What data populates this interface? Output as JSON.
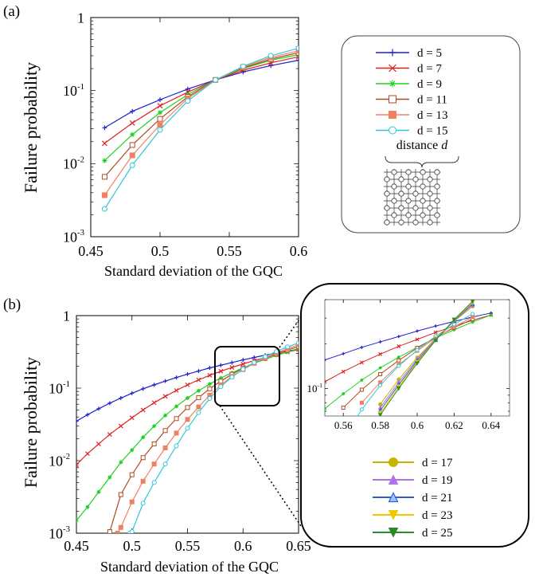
{
  "panel_labels": [
    "(a)",
    "(b)"
  ],
  "inset_legend_caption": "distance",
  "inset_legend_caption_var": "d",
  "chart_data": [
    {
      "type": "line",
      "panel": "(a)",
      "xlabel": "Standard deviation of the GQC",
      "ylabel": "Failure probability",
      "xlim": [
        0.45,
        0.6
      ],
      "ylim": [
        0.001,
        1
      ],
      "yscale": "log",
      "grid": false,
      "legend_position": "right",
      "xticks": [
        0.45,
        0.5,
        0.55,
        0.6
      ],
      "xticklabels": [
        "0.45",
        "0.5",
        "0.55",
        "0.6"
      ],
      "yticks": [
        0.001,
        0.01,
        0.1,
        1
      ],
      "yticklabels": [
        [
          "10",
          "-3"
        ],
        [
          "10",
          "-2"
        ],
        [
          "10",
          "-1"
        ],
        [
          "1",
          ""
        ]
      ],
      "x": [
        0.46,
        0.48,
        0.5,
        0.52,
        0.54,
        0.56,
        0.58,
        0.6
      ],
      "series": [
        {
          "name": "d = 5",
          "color": "#1f1fd0",
          "marker": "plus",
          "values": [
            0.031,
            0.052,
            0.075,
            0.105,
            0.14,
            0.18,
            0.22,
            0.26
          ]
        },
        {
          "name": "d = 7",
          "color": "#e02020",
          "marker": "x",
          "values": [
            0.019,
            0.036,
            0.062,
            0.095,
            0.14,
            0.19,
            0.24,
            0.29
          ]
        },
        {
          "name": "d = 9",
          "color": "#20d020",
          "marker": "star",
          "values": [
            0.011,
            0.025,
            0.05,
            0.088,
            0.14,
            0.2,
            0.26,
            0.31
          ]
        },
        {
          "name": "d = 11",
          "color": "#b04a20",
          "marker": "open-square",
          "values": [
            0.0066,
            0.018,
            0.041,
            0.082,
            0.14,
            0.205,
            0.27,
            0.33
          ]
        },
        {
          "name": "d = 13",
          "color": "#f08060",
          "marker": "filled-square",
          "values": [
            0.0037,
            0.013,
            0.034,
            0.078,
            0.14,
            0.21,
            0.285,
            0.35
          ]
        },
        {
          "name": "d = 15",
          "color": "#30c8d8",
          "marker": "open-circle",
          "values": [
            0.0024,
            0.0095,
            0.029,
            0.072,
            0.14,
            0.215,
            0.3,
            0.38
          ]
        }
      ]
    },
    {
      "type": "line",
      "panel": "(b)",
      "xlabel": "Standard deviation of the GQC",
      "ylabel": "Failure probability",
      "xlim": [
        0.45,
        0.65
      ],
      "ylim": [
        0.001,
        1
      ],
      "yscale": "log",
      "grid": false,
      "xticks": [
        0.45,
        0.5,
        0.55,
        0.6,
        0.65
      ],
      "xticklabels": [
        "0.45",
        "0.5",
        "0.55",
        "0.6",
        "0.65"
      ],
      "yticks": [
        0.001,
        0.01,
        0.1,
        1
      ],
      "yticklabels": [
        [
          "10",
          "-3"
        ],
        [
          "10",
          "-2"
        ],
        [
          "10",
          "-1"
        ],
        [
          "1",
          ""
        ]
      ],
      "series": [
        {
          "name": "d = 5",
          "color": "#1f1fd0",
          "marker": "plus",
          "x": [
            0.45,
            0.46,
            0.47,
            0.48,
            0.49,
            0.5,
            0.51,
            0.52,
            0.53,
            0.54,
            0.55,
            0.56,
            0.57,
            0.58,
            0.59,
            0.6,
            0.61,
            0.62,
            0.63,
            0.64,
            0.65
          ],
          "values": [
            0.035,
            0.043,
            0.052,
            0.062,
            0.073,
            0.085,
            0.098,
            0.111,
            0.125,
            0.14,
            0.156,
            0.172,
            0.19,
            0.207,
            0.225,
            0.245,
            0.265,
            0.285,
            0.305,
            0.325,
            0.345
          ]
        },
        {
          "name": "d = 7",
          "color": "#e02020",
          "marker": "x",
          "x": [
            0.45,
            0.46,
            0.47,
            0.48,
            0.49,
            0.5,
            0.51,
            0.52,
            0.53,
            0.54,
            0.55,
            0.56,
            0.57,
            0.58,
            0.59,
            0.6,
            0.61,
            0.62,
            0.63,
            0.64,
            0.65
          ],
          "values": [
            0.0088,
            0.0125,
            0.017,
            0.023,
            0.03,
            0.039,
            0.05,
            0.063,
            0.077,
            0.093,
            0.111,
            0.13,
            0.15,
            0.171,
            0.193,
            0.215,
            0.24,
            0.265,
            0.29,
            0.315,
            0.34
          ]
        },
        {
          "name": "d = 9",
          "color": "#20d020",
          "marker": "star",
          "x": [
            0.45,
            0.46,
            0.47,
            0.48,
            0.49,
            0.5,
            0.51,
            0.52,
            0.53,
            0.54,
            0.55,
            0.56,
            0.57,
            0.58,
            0.59,
            0.6,
            0.61,
            0.62,
            0.63,
            0.64,
            0.65
          ],
          "values": [
            0.0015,
            0.0023,
            0.0037,
            0.0059,
            0.0095,
            0.014,
            0.021,
            0.03,
            0.042,
            0.056,
            0.073,
            0.092,
            0.114,
            0.138,
            0.163,
            0.19,
            0.22,
            0.25,
            0.282,
            0.315,
            0.35
          ]
        },
        {
          "name": "d = 11",
          "color": "#b04a20",
          "marker": "open-square",
          "x": [
            0.48,
            0.49,
            0.5,
            0.51,
            0.52,
            0.53,
            0.54,
            0.55,
            0.56,
            0.57,
            0.58,
            0.59,
            0.6,
            0.61,
            0.62,
            0.63,
            0.64,
            0.65
          ],
          "values": [
            0.00105,
            0.0034,
            0.0064,
            0.011,
            0.017,
            0.026,
            0.038,
            0.054,
            0.074,
            0.098,
            0.125,
            0.155,
            0.188,
            0.222,
            0.258,
            0.295,
            0.335,
            0.375
          ]
        },
        {
          "name": "d = 13",
          "color": "#f08060",
          "marker": "filled-square",
          "x": [
            0.487,
            0.49,
            0.5,
            0.51,
            0.52,
            0.53,
            0.54,
            0.55,
            0.56,
            0.57,
            0.58,
            0.59,
            0.6,
            0.61,
            0.62,
            0.63,
            0.64,
            0.65
          ],
          "values": [
            0.001,
            0.0012,
            0.0027,
            0.0052,
            0.009,
            0.015,
            0.024,
            0.037,
            0.055,
            0.08,
            0.11,
            0.145,
            0.18,
            0.22,
            0.262,
            0.305,
            0.35,
            0.395
          ]
        },
        {
          "name": "d = 15",
          "color": "#30c8d8",
          "marker": "open-circle",
          "x": [
            0.498,
            0.5,
            0.51,
            0.52,
            0.53,
            0.54,
            0.55,
            0.56,
            0.57,
            0.58,
            0.59,
            0.6,
            0.61,
            0.62,
            0.63,
            0.64,
            0.65
          ],
          "values": [
            0.001,
            0.00105,
            0.0026,
            0.005,
            0.009,
            0.016,
            0.028,
            0.046,
            0.072,
            0.105,
            0.142,
            0.182,
            0.226,
            0.272,
            0.32,
            0.37,
            0.42
          ]
        }
      ]
    },
    {
      "type": "line",
      "panel": "(b) zoom inset",
      "xlim": [
        0.55,
        0.65
      ],
      "ylim": [
        0.065,
        0.4
      ],
      "yscale": "log",
      "grid": false,
      "xticks": [
        0.56,
        0.58,
        0.6,
        0.62,
        0.64
      ],
      "xticklabels": [
        "0.56",
        "0.58",
        "0.6",
        "0.62",
        "0.64"
      ],
      "yticks": [
        0.1
      ],
      "yticklabels": [
        [
          "10",
          "-1"
        ]
      ],
      "series": [
        {
          "name": "d = 5",
          "color": "#1f1fd0",
          "marker": "plus",
          "x": [
            0.55,
            0.56,
            0.57,
            0.58,
            0.59,
            0.6,
            0.61,
            0.62,
            0.63,
            0.64
          ],
          "values": [
            0.156,
            0.172,
            0.19,
            0.207,
            0.225,
            0.245,
            0.265,
            0.285,
            0.305,
            0.325
          ]
        },
        {
          "name": "d = 7",
          "color": "#e02020",
          "marker": "x",
          "x": [
            0.55,
            0.56,
            0.57,
            0.58,
            0.59,
            0.6,
            0.61,
            0.62,
            0.63,
            0.64
          ],
          "values": [
            0.111,
            0.13,
            0.15,
            0.171,
            0.193,
            0.215,
            0.24,
            0.265,
            0.29,
            0.315
          ]
        },
        {
          "name": "d = 9",
          "color": "#20d020",
          "marker": "star",
          "x": [
            0.55,
            0.56,
            0.57,
            0.58,
            0.59,
            0.6,
            0.61,
            0.62,
            0.63,
            0.64
          ],
          "values": [
            0.073,
            0.092,
            0.114,
            0.138,
            0.163,
            0.19,
            0.22,
            0.25,
            0.282,
            0.315
          ]
        },
        {
          "name": "d = 11",
          "color": "#b04a20",
          "marker": "open-square",
          "x": [
            0.56,
            0.57,
            0.58,
            0.59,
            0.6,
            0.61,
            0.62,
            0.63
          ],
          "values": [
            0.074,
            0.098,
            0.125,
            0.155,
            0.188,
            0.222,
            0.258,
            0.295
          ]
        },
        {
          "name": "d = 13",
          "color": "#f08060",
          "marker": "filled-square",
          "x": [
            0.57,
            0.58,
            0.59,
            0.6,
            0.61,
            0.62,
            0.63
          ],
          "values": [
            0.08,
            0.11,
            0.145,
            0.18,
            0.22,
            0.262,
            0.305
          ]
        },
        {
          "name": "d = 15",
          "color": "#30c8d8",
          "marker": "open-circle",
          "x": [
            0.56,
            0.57,
            0.58,
            0.59,
            0.6,
            0.61,
            0.62,
            0.63
          ],
          "values": [
            0.046,
            0.072,
            0.105,
            0.142,
            0.182,
            0.226,
            0.272,
            0.32
          ]
        },
        {
          "name": "d = 17",
          "color": "#c8b400",
          "marker": "filled-circle",
          "x": [
            0.58,
            0.59,
            0.6,
            0.61,
            0.62,
            0.63
          ],
          "values": [
            0.078,
            0.115,
            0.162,
            0.218,
            0.285,
            0.36
          ]
        },
        {
          "name": "d = 19",
          "color": "#b070e8",
          "marker": "filled-triangle-up",
          "x": [
            0.58,
            0.59,
            0.6,
            0.61,
            0.62,
            0.63
          ],
          "values": [
            0.074,
            0.11,
            0.158,
            0.216,
            0.287,
            0.368
          ]
        },
        {
          "name": "d = 21",
          "color": "#3060d0",
          "marker": "open-triangle-up",
          "x": [
            0.58,
            0.59,
            0.6,
            0.61,
            0.62,
            0.63
          ],
          "values": [
            0.071,
            0.106,
            0.154,
            0.214,
            0.289,
            0.375
          ]
        },
        {
          "name": "d = 23",
          "color": "#f0c800",
          "marker": "triangle-down",
          "x": [
            0.58,
            0.59,
            0.6,
            0.61,
            0.62,
            0.63
          ],
          "values": [
            0.068,
            0.103,
            0.151,
            0.213,
            0.291,
            0.382
          ]
        },
        {
          "name": "d = 25",
          "color": "#2a8a2a",
          "marker": "filled-triangle-down",
          "x": [
            0.58,
            0.59,
            0.6,
            0.61,
            0.62,
            0.63
          ],
          "values": [
            0.066,
            0.1,
            0.148,
            0.212,
            0.293,
            0.39
          ]
        }
      ]
    }
  ]
}
